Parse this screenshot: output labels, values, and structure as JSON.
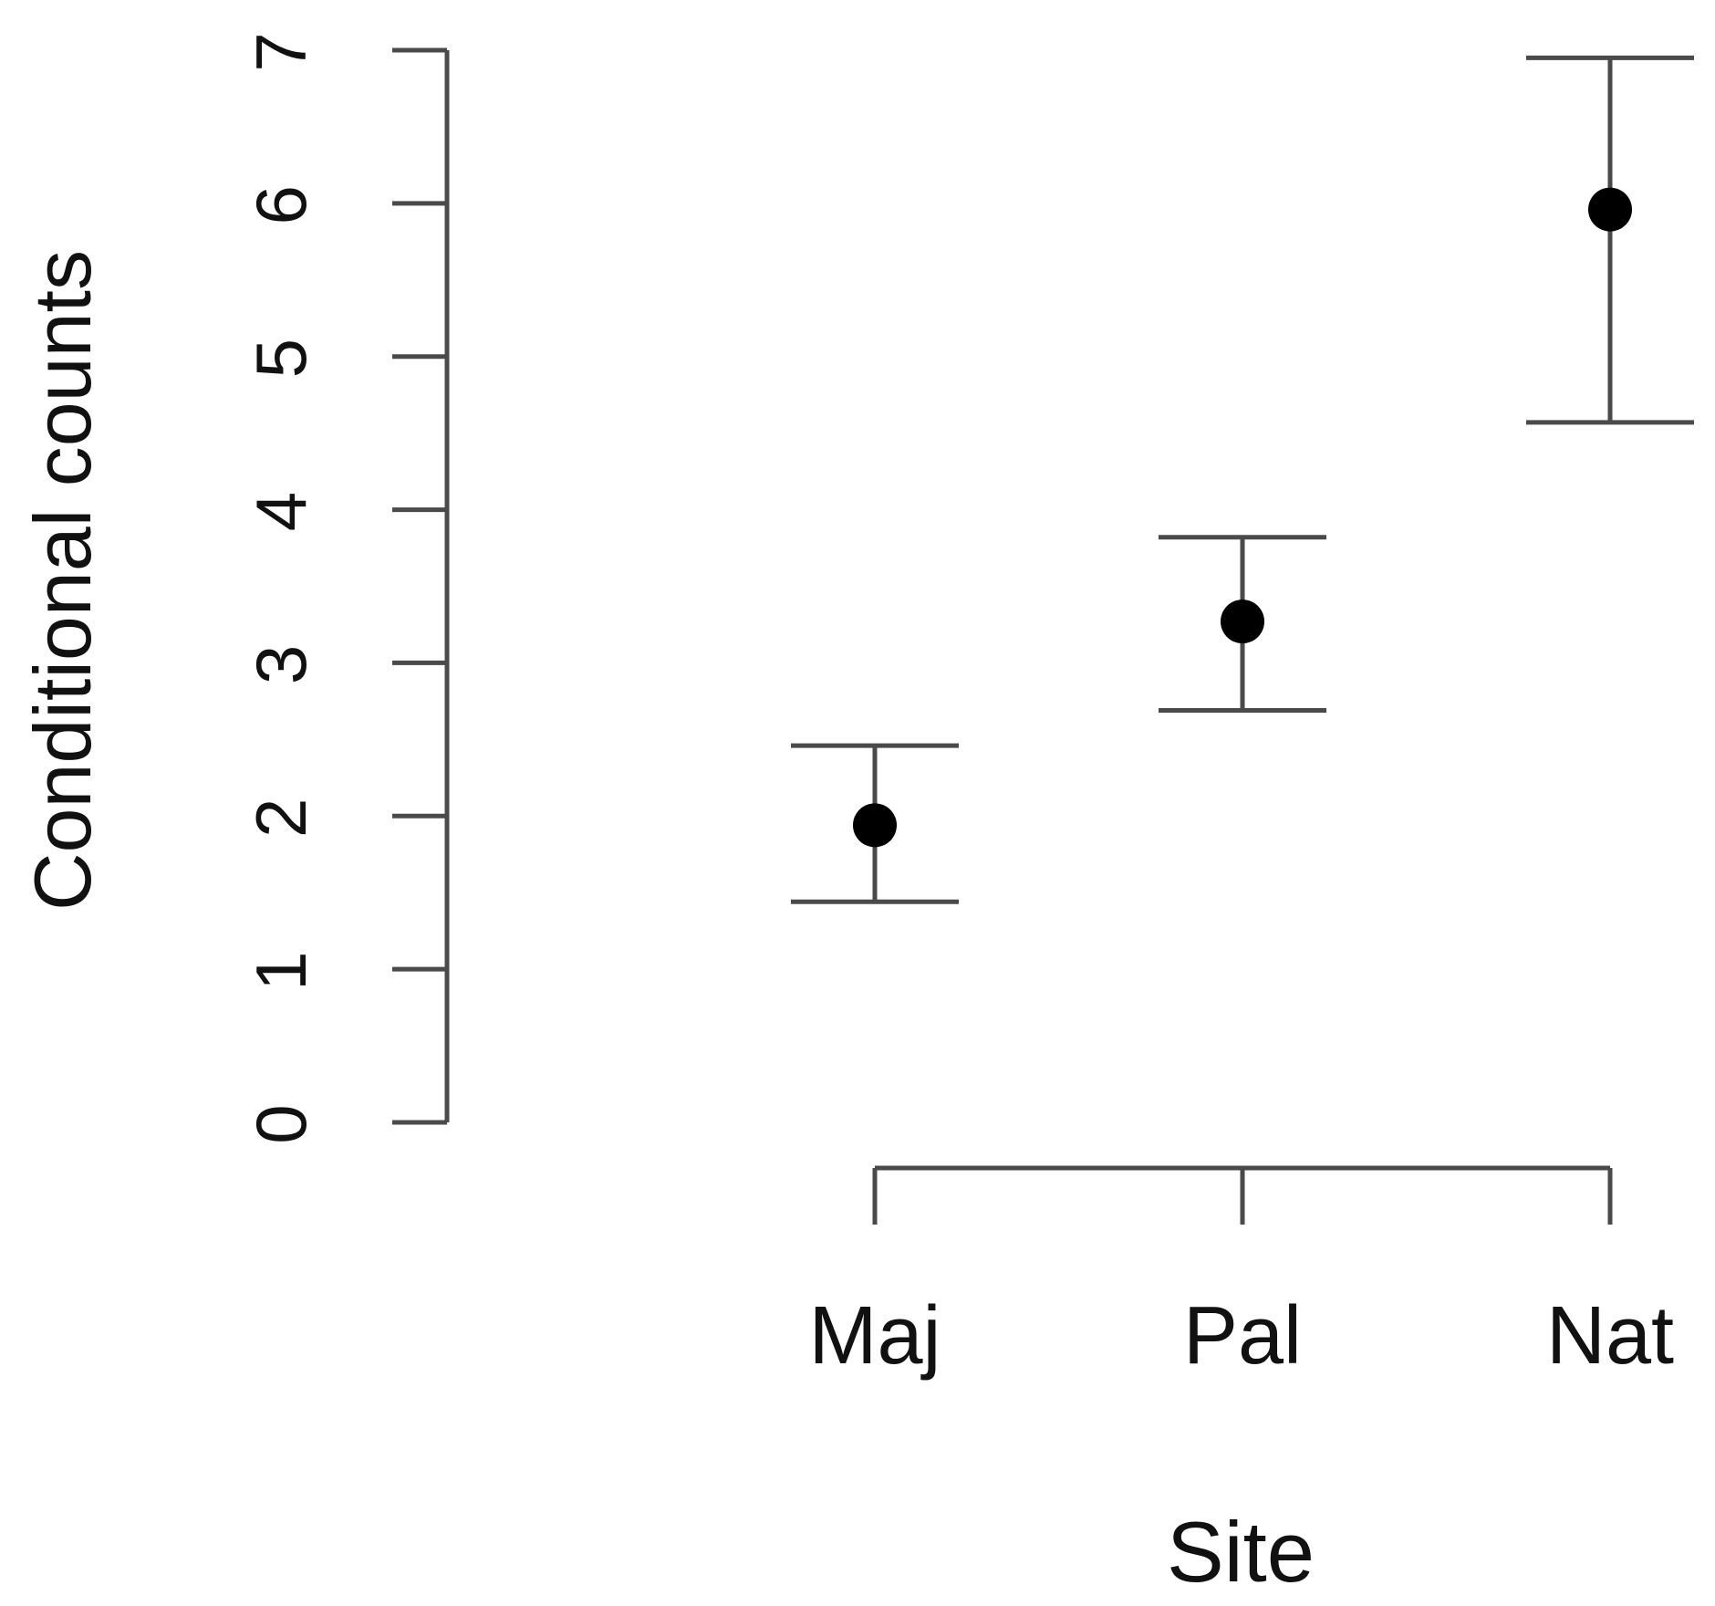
{
  "chart_data": {
    "type": "scatter",
    "categories": [
      "Maj",
      "Pal",
      "Nat"
    ],
    "series": [
      {
        "values": [
          1.94,
          3.27,
          5.96
        ],
        "lower": [
          1.44,
          2.69,
          4.57
        ],
        "upper": [
          2.46,
          3.82,
          6.95
        ]
      }
    ],
    "xlabel": "Site",
    "ylabel": "Conditional counts",
    "ylim": [
      0,
      7
    ],
    "y_ticks": [
      0,
      1,
      2,
      3,
      4,
      5,
      6,
      7
    ],
    "grid": false,
    "point_color": "#000000",
    "axis_color": "#4a4a4a"
  }
}
